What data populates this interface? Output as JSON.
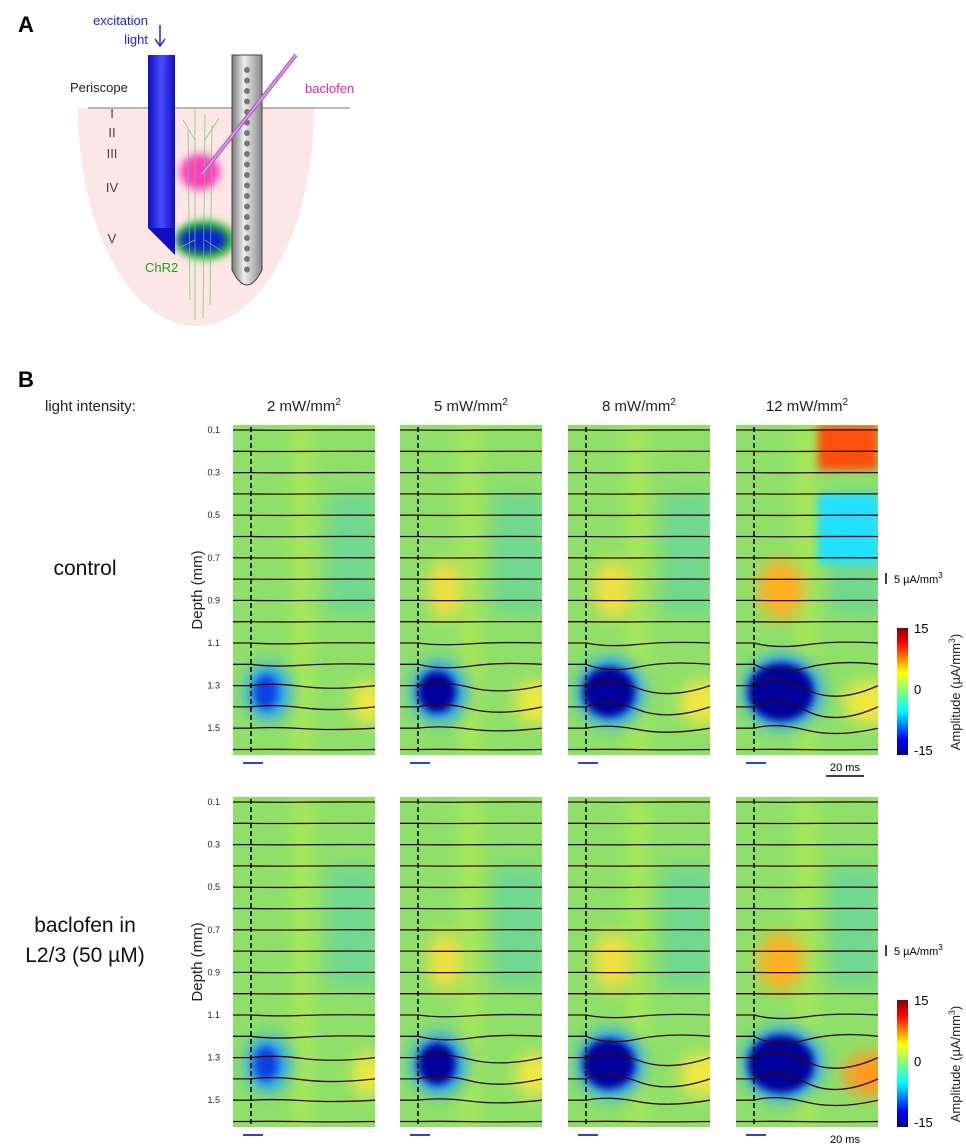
{
  "panel_a": {
    "label": "A",
    "excitation": "excitation",
    "light": "light",
    "periscope": "Periscope",
    "baclofen": "baclofen",
    "layers": [
      "I",
      "II",
      "III",
      "IV",
      "V"
    ],
    "chr2": "ChR2"
  },
  "panel_b": {
    "label": "B",
    "light_intensity_label": "light intensity:",
    "intensities": [
      {
        "text": "2 mW/mm",
        "sup": "2"
      },
      {
        "text": "5 mW/mm",
        "sup": "2"
      },
      {
        "text": "8 mW/mm",
        "sup": "2"
      },
      {
        "text": "12 mW/mm",
        "sup": "2"
      }
    ],
    "rows": [
      {
        "condition": [
          "control"
        ]
      },
      {
        "condition": [
          "baclofen in",
          "L2/3 (50 µM)"
        ]
      }
    ],
    "depth_label": "Depth (mm)",
    "depth_ticks": [
      "0.1",
      "0.3",
      "0.5",
      "0.7",
      "0.9",
      "1.1",
      "1.3",
      "1.5"
    ],
    "scale_bar": {
      "text": "5 µA/mm",
      "sup": "3"
    },
    "colorbar": {
      "label": "Amplitude (µA/mm",
      "label_sup": "3",
      "label_end": ")",
      "ticks": [
        "15",
        "0",
        "-15"
      ]
    },
    "time_bar": "20 ms"
  }
}
